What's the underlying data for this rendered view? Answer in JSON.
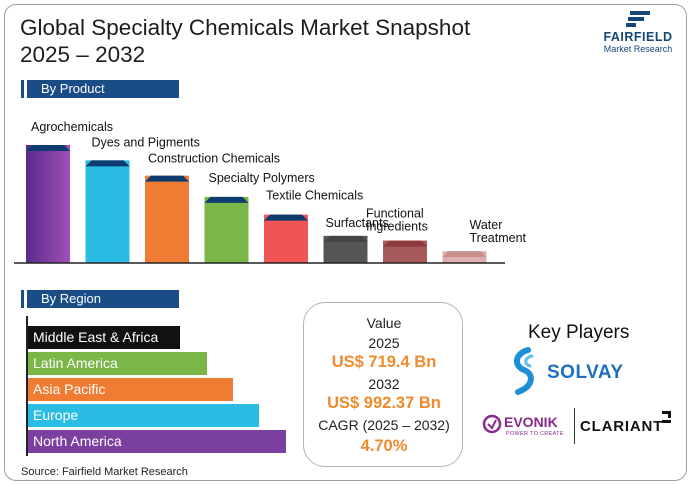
{
  "title_line1": "Global Specialty Chemicals Market Snapshot",
  "title_line2": "2025 – 2032",
  "logo": {
    "name": "FAIRFIELD",
    "sub": "Market Research"
  },
  "sections": {
    "product": "By Product",
    "region": "By Region"
  },
  "chart_data": [
    {
      "type": "bar",
      "title": "By Product",
      "categories": [
        "Agrochemicals",
        "Dyes and Pigments",
        "Construction Chemicals",
        "Specialty Polymers",
        "Textile Chemicals",
        "Surfactants",
        "Functional Ingredients",
        "Water Treatment"
      ],
      "values": [
        100,
        87,
        74,
        56,
        41,
        23,
        19,
        10
      ],
      "ylim": [
        0,
        100
      ],
      "colors": [
        "#7b3fa0",
        "#2bbce3",
        "#f07b32",
        "#7ab648",
        "#f05454",
        "#555555",
        "#a85a5a",
        "#dfb0ae"
      ],
      "top_colors": [
        "#0e3c6e",
        "#0e3c6e",
        "#0e3c6e",
        "#0e3c6e",
        "#0e3c6e",
        "#444444",
        "#8b3b3b",
        "#c58f8c"
      ],
      "xlabel": "",
      "ylabel": ""
    },
    {
      "type": "bar",
      "orientation": "horizontal",
      "title": "By Region",
      "categories": [
        "Middle East & Africa",
        "Latin America",
        "Asia Pacific",
        "Europe",
        "North America"
      ],
      "values": [
        58,
        68,
        78,
        88,
        98
      ],
      "ylim": [
        0,
        100
      ],
      "colors": [
        "#111111",
        "#7ab648",
        "#f07b32",
        "#2bbce3",
        "#7b3fa0"
      ]
    }
  ],
  "value_box": {
    "label": "Value",
    "year1": "2025",
    "value1": "US$ 719.4 Bn",
    "year2": "2032",
    "value2": "US$ 992.37 Bn",
    "cagr_label": "CAGR (2025 – 2032)",
    "cagr_value": "4.70%"
  },
  "key_players": {
    "title": "Key Players",
    "solvay": "SOLVAY",
    "evonik": "EVONIK",
    "evonik_tagline": "POWER TO CREATE",
    "clariant": "CLARIANT"
  },
  "source": "Source: Fairfield Market Research"
}
